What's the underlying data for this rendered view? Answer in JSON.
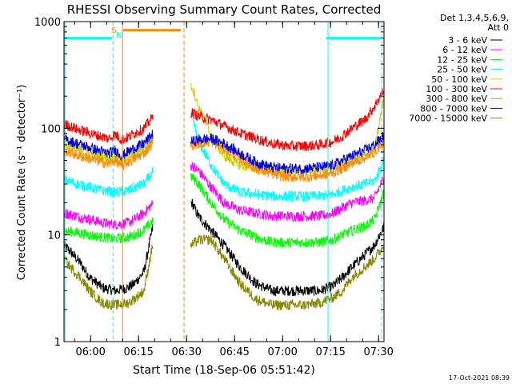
{
  "chart_data": {
    "type": "line",
    "title": "RHESSI Observing Summary Count Rates, Corrected",
    "xlabel": "Start Time (18-Sep-06 05:51:42)",
    "ylabel": "Corrected Count Rate (s⁻¹ detector⁻¹)",
    "yscale": "log",
    "ylim": [
      1,
      1000
    ],
    "xlim_minutes": [
      0,
      100
    ],
    "x_ticks": [
      {
        "label": "06:00",
        "minute": 8.3
      },
      {
        "label": "06:15",
        "minute": 23.3
      },
      {
        "label": "06:30",
        "minute": 38.3
      },
      {
        "label": "06:45",
        "minute": 53.3
      },
      {
        "label": "07:00",
        "minute": 68.3
      },
      {
        "label": "07:15",
        "minute": 83.3
      },
      {
        "label": "07:30",
        "minute": 98.3
      }
    ],
    "y_ticks": [
      {
        "label": "1",
        "value": 1
      },
      {
        "label": "10",
        "value": 10
      },
      {
        "label": "100",
        "value": 100
      },
      {
        "label": "1000",
        "value": 1000
      }
    ],
    "legend_header": [
      "Det 1,3,4,5,6,9,",
      "Att 0"
    ],
    "legend_position": "right",
    "series": [
      {
        "name": "3 - 6 keV",
        "color": "#000000",
        "x": [
          0,
          2,
          5,
          8,
          12,
          16,
          20,
          22,
          25,
          28,
          40,
          42,
          46,
          50,
          55,
          60,
          65,
          70,
          75,
          80,
          84,
          87,
          90,
          94,
          97,
          100
        ],
        "y": [
          8,
          7,
          5.5,
          4,
          3.2,
          3,
          3.2,
          3.5,
          4.5,
          13,
          20,
          15,
          11,
          8,
          5,
          3.5,
          3,
          3,
          3,
          3,
          3.3,
          4,
          5,
          6.5,
          8,
          12
        ]
      },
      {
        "name": "6 - 12 keV",
        "color": "#ff00ff",
        "x": [
          0,
          4,
          8,
          12,
          16,
          20,
          22,
          25,
          28,
          40,
          42,
          46,
          50,
          55,
          60,
          65,
          70,
          75,
          80,
          84,
          87,
          90,
          94,
          97,
          100
        ],
        "y": [
          16,
          15,
          14,
          13,
          12.5,
          13,
          14,
          16,
          20,
          45,
          40,
          28,
          20,
          17,
          16,
          15,
          15,
          15,
          15,
          16,
          18,
          20,
          21,
          22,
          35
        ]
      },
      {
        "name": "12 - 25 keV",
        "color": "#00ff00",
        "x": [
          0,
          4,
          8,
          12,
          16,
          20,
          22,
          25,
          28,
          40,
          42,
          46,
          50,
          55,
          60,
          65,
          70,
          75,
          80,
          84,
          87,
          90,
          94,
          97,
          100
        ],
        "y": [
          11,
          10.5,
          10,
          9.5,
          9.2,
          9.5,
          10,
          11,
          14,
          35,
          30,
          20,
          14,
          11,
          9.5,
          8.5,
          8.5,
          8.5,
          8.5,
          9,
          10,
          11,
          12,
          14,
          25
        ]
      },
      {
        "name": "25 - 50 keV",
        "color": "#00ffff",
        "x": [
          0,
          4,
          8,
          12,
          16,
          20,
          22,
          25,
          28,
          40,
          42,
          46,
          50,
          55,
          60,
          65,
          70,
          75,
          80,
          84,
          87,
          90,
          94,
          97,
          100
        ],
        "y": [
          33,
          30,
          28,
          26,
          25,
          26,
          28,
          30,
          40,
          130,
          75,
          45,
          30,
          25,
          24,
          23,
          23,
          23,
          23,
          24,
          26,
          28,
          30,
          32,
          50
        ]
      },
      {
        "name": "50 - 100 keV",
        "color": "#cccc00",
        "x": [
          0,
          4,
          8,
          12,
          14,
          16,
          18,
          20,
          22,
          25,
          28,
          40,
          42,
          46,
          50,
          55,
          60,
          65,
          70,
          75,
          80,
          84,
          87,
          90,
          94,
          97,
          100
        ],
        "y": [
          70,
          63,
          58,
          54,
          52,
          56,
          50,
          54,
          58,
          65,
          80,
          250,
          160,
          85,
          55,
          45,
          42,
          40,
          40,
          40,
          41,
          43,
          46,
          50,
          55,
          60,
          200
        ]
      },
      {
        "name": "100 - 300 keV",
        "color": "#ff0000",
        "x": [
          0,
          4,
          8,
          12,
          14,
          16,
          18,
          20,
          22,
          25,
          28,
          40,
          42,
          46,
          50,
          55,
          60,
          65,
          70,
          75,
          80,
          84,
          87,
          90,
          94,
          97,
          100
        ],
        "y": [
          110,
          98,
          90,
          83,
          80,
          88,
          78,
          82,
          90,
          100,
          130,
          140,
          130,
          120,
          105,
          90,
          80,
          72,
          68,
          68,
          70,
          75,
          85,
          100,
          120,
          160,
          230
        ]
      },
      {
        "name": "300 - 800 keV",
        "color": "#ff8800",
        "x": [
          0,
          4,
          8,
          12,
          14,
          16,
          18,
          20,
          22,
          25,
          28,
          40,
          42,
          46,
          50,
          55,
          60,
          65,
          70,
          75,
          80,
          84,
          87,
          90,
          94,
          97,
          100
        ],
        "y": [
          62,
          56,
          52,
          48,
          46,
          50,
          44,
          48,
          52,
          58,
          75,
          70,
          72,
          75,
          65,
          52,
          42,
          37,
          35,
          35,
          36,
          38,
          42,
          47,
          53,
          60,
          75
        ]
      },
      {
        "name": "800 - 7000 keV",
        "color": "#0000dd",
        "x": [
          0,
          4,
          8,
          12,
          14,
          16,
          18,
          20,
          22,
          25,
          28,
          40,
          42,
          46,
          50,
          55,
          60,
          65,
          70,
          75,
          80,
          84,
          87,
          90,
          94,
          97,
          100
        ],
        "y": [
          80,
          72,
          66,
          60,
          58,
          63,
          55,
          60,
          65,
          72,
          90,
          75,
          78,
          80,
          72,
          58,
          48,
          43,
          42,
          42,
          43,
          45,
          50,
          55,
          62,
          70,
          85
        ]
      },
      {
        "name": "7000 - 15000 keV",
        "color": "#888800",
        "x": [
          0,
          2,
          5,
          8,
          12,
          16,
          20,
          22,
          25,
          28,
          40,
          42,
          46,
          50,
          55,
          60,
          65,
          70,
          75,
          80,
          84,
          87,
          90,
          94,
          97,
          100
        ],
        "y": [
          6,
          5,
          4,
          3,
          2.3,
          2.2,
          2.3,
          2.5,
          3,
          9,
          8,
          9,
          9,
          6,
          3.5,
          2.5,
          2.2,
          2.2,
          2.2,
          2.3,
          2.6,
          3,
          4,
          5,
          6,
          8
        ]
      }
    ],
    "markers": [
      {
        "type": "hline",
        "color": "#00ffff",
        "x0": 0,
        "x1": 15,
        "value": 700
      },
      {
        "type": "hline",
        "color": "#00ffff",
        "x0": 82,
        "x1": 99,
        "value": 700
      },
      {
        "type": "hline",
        "color": "#ff8800",
        "x0": 18.5,
        "x1": 36.5,
        "value": 830
      },
      {
        "type": "vline",
        "color": "#00ffff",
        "style": "solid",
        "x": 0.3
      },
      {
        "type": "vline",
        "color": "#00ffff",
        "style": "dashed",
        "x": 15.3
      },
      {
        "type": "vline",
        "color": "#ff8800",
        "style": "solid",
        "x": 18.3
      },
      {
        "type": "vline",
        "color": "#ff8800",
        "style": "dashed",
        "x": 37.5
      },
      {
        "type": "vline",
        "color": "#00ffff",
        "style": "solid",
        "x": 82.5
      },
      {
        "type": "vline",
        "color": "#00ffff",
        "style": "dashed",
        "x": 99.3
      }
    ],
    "marker_labels": [
      {
        "text": "S",
        "color": "#ff8800",
        "x": 15.6
      },
      {
        "text": "N",
        "color": "#00ffff",
        "x": 17.2
      }
    ],
    "gaps_minutes": [
      [
        27.8,
        39.5
      ]
    ],
    "footer_timestamp": "17-Oct-2021 08:39"
  }
}
